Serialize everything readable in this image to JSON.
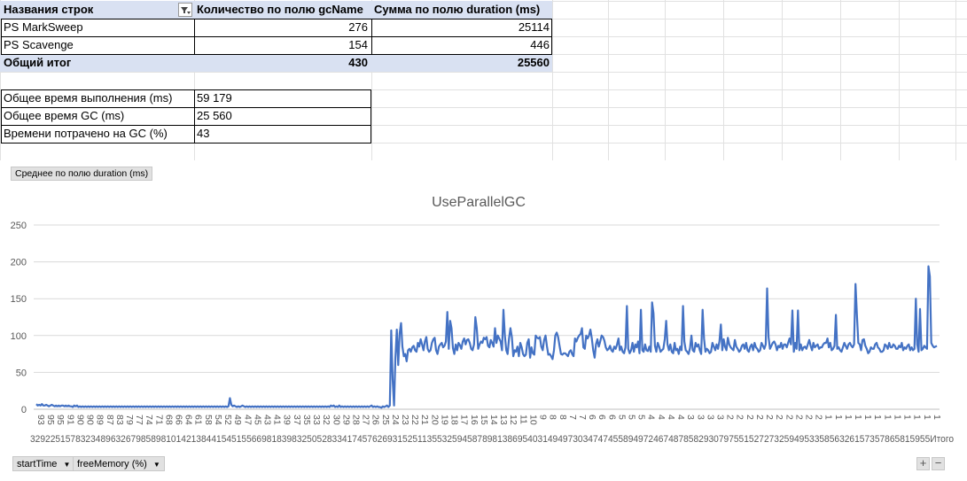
{
  "pivot": {
    "headers": {
      "rows": "Названия строк",
      "count": "Количество по полю gcName",
      "sum": "Сумма по полю duration (ms)"
    },
    "rows": [
      {
        "name": "PS MarkSweep",
        "count": "276",
        "sum": "25114"
      },
      {
        "name": "PS Scavenge",
        "count": "154",
        "sum": "446"
      }
    ],
    "total": {
      "name": "Общий итог",
      "count": "430",
      "sum": "25560"
    }
  },
  "summary": [
    {
      "label": "Общее время выполнения (ms)",
      "value": "59 179"
    },
    {
      "label": "Общее время GC (ms)",
      "value": "25 560"
    },
    {
      "label": "Времени потрачено на GC (%)",
      "value": "43"
    }
  ],
  "chart_ui": {
    "value_field_button": "Среднее по полю duration (ms)",
    "axis_field_1": "startTime",
    "axis_field_2": "freeMemory (%)",
    "zoom_in": "+",
    "zoom_out": "−"
  },
  "colors": {
    "line": "#4472c4",
    "header_fill": "#d9e1f2",
    "gridline": "#d9d9d9"
  },
  "chart_data": {
    "type": "line",
    "title": "UseParallelGC",
    "ylim": [
      0,
      250
    ],
    "yticks": [
      0,
      50,
      100,
      150,
      200,
      250
    ],
    "grid": true,
    "legend": "none",
    "x_tick_labels": [
      "93",
      "95",
      "95",
      "91",
      "90",
      "90",
      "89",
      "87",
      "83",
      "79",
      "77",
      "74",
      "71",
      "68",
      "66",
      "64",
      "61",
      "58",
      "54",
      "52",
      "49",
      "47",
      "45",
      "43",
      "41",
      "39",
      "37",
      "35",
      "33",
      "32",
      "30",
      "29",
      "28",
      "27",
      "26",
      "25",
      "24",
      "23",
      "22",
      "21",
      "20",
      "19",
      "18",
      "17",
      "16",
      "15",
      "14",
      "13",
      "12",
      "11",
      "10",
      "9",
      "8",
      "8",
      "7",
      "7",
      "6",
      "6",
      "6",
      "5",
      "5",
      "5",
      "4",
      "4",
      "4",
      "4",
      "3",
      "3",
      "3",
      "3",
      "2",
      "2",
      "2",
      "2",
      "2",
      "2",
      "2",
      "2",
      "2",
      "2",
      "1",
      "1",
      "1",
      "1",
      "1",
      "1",
      "1",
      "1",
      "1",
      "1",
      "1",
      "1"
    ],
    "x_outer_labels_visible": "32922515783234896326798589810142138441545155669818398325052833417457626931525113553259458789813869540314949730347474558949724674878582930797551527273259495335856326157357865815955Итого",
    "series": [
      {
        "values": [
          7,
          5,
          6,
          5,
          7,
          5,
          5,
          6,
          5,
          4,
          5,
          6,
          5,
          4,
          5,
          4,
          5,
          4,
          5,
          5,
          4,
          5,
          4,
          5,
          4,
          4,
          3,
          5,
          4,
          5,
          3,
          4,
          3,
          4,
          3,
          4,
          3,
          4,
          3,
          4,
          3,
          4,
          3,
          4,
          3,
          4,
          3,
          4,
          3,
          4,
          3,
          4,
          3,
          4,
          3,
          4,
          3,
          4,
          3,
          4,
          3,
          4,
          3,
          4,
          3,
          4,
          3,
          4,
          3,
          4,
          3,
          4,
          3,
          4,
          3,
          4,
          3,
          4,
          3,
          4,
          3,
          4,
          3,
          4,
          3,
          4,
          3,
          4,
          3,
          4,
          3,
          4,
          3,
          4,
          3,
          4,
          3,
          4,
          3,
          4,
          3,
          4,
          3,
          4,
          3,
          4,
          3,
          4,
          3,
          4,
          3,
          4,
          3,
          4,
          3,
          4,
          3,
          4,
          3,
          4,
          3,
          4,
          3,
          4,
          3,
          4,
          3,
          4,
          3,
          4,
          3,
          4,
          3,
          4,
          3,
          4,
          3,
          4,
          15,
          6,
          4,
          5,
          4,
          3,
          4,
          3,
          4,
          5,
          4,
          3,
          4,
          3,
          4,
          3,
          4,
          3,
          4,
          3,
          4,
          3,
          4,
          3,
          4,
          3,
          4,
          3,
          4,
          3,
          4,
          3,
          4,
          3,
          4,
          3,
          4,
          3,
          4,
          3,
          4,
          3,
          4,
          3,
          4,
          3,
          4,
          3,
          4,
          3,
          4,
          3,
          4,
          3,
          4,
          3,
          4,
          3,
          4,
          3,
          4,
          3,
          4,
          3,
          4,
          3,
          4,
          3,
          4,
          3,
          4,
          3,
          5,
          4,
          5,
          3,
          4,
          3,
          5,
          3,
          4,
          3,
          4,
          3,
          4,
          3,
          4,
          3,
          4,
          3,
          4,
          3,
          4,
          3,
          4,
          3,
          4,
          3,
          4,
          3,
          4,
          5,
          3,
          4,
          3,
          4,
          3,
          3,
          2,
          4,
          3,
          4,
          5,
          3,
          5,
          107,
          40,
          5,
          70,
          108,
          60,
          103,
          117,
          85,
          72,
          75,
          65,
          80,
          82,
          78,
          84,
          86,
          80,
          78,
          90,
          85,
          95,
          88,
          80,
          92,
          98,
          82,
          78,
          80,
          90,
          95,
          97,
          80,
          75,
          85,
          88,
          90,
          84,
          86,
          92,
          132,
          82,
          120,
          110,
          83,
          75,
          88,
          80,
          90,
          87,
          82,
          92,
          96,
          88,
          94,
          95,
          90,
          82,
          80,
          88,
          125,
          110,
          82,
          88,
          92,
          90,
          97,
          95,
          98,
          86,
          84,
          94,
          90,
          85,
          110,
          90,
          100,
          96,
          92,
          80,
          135,
          100,
          80,
          75,
          96,
          110,
          98,
          72,
          80,
          78,
          85,
          72,
          90,
          84,
          75,
          72,
          74,
          90,
          95,
          70,
          84,
          76,
          74,
          100,
          97,
          96,
          98,
          85,
          80,
          94,
          100,
          86,
          74,
          75,
          72,
          68,
          80,
          100,
          104,
          98,
          86,
          75,
          74,
          76,
          76,
          74,
          72,
          78,
          80,
          75,
          72,
          96,
          92,
          97,
          100,
          102,
          110,
          84,
          82,
          100,
          96,
          100,
          108,
          96,
          80,
          70,
          88,
          95,
          85,
          92,
          100,
          98,
          93,
          84,
          80,
          82,
          86,
          80,
          78,
          85,
          82,
          88,
          96,
          80,
          85,
          78,
          76,
          84,
          140,
          82,
          76,
          80,
          90,
          78,
          88,
          84,
          92,
          76,
          135,
          80,
          78,
          88,
          80,
          79,
          85,
          78,
          145,
          130,
          86,
          78,
          90,
          85,
          78,
          80,
          82,
          95,
          120,
          88,
          80,
          88,
          78,
          76,
          90,
          80,
          82,
          75,
          85,
          80,
          140,
          92,
          80,
          78,
          75,
          83,
          100,
          80,
          78,
          90,
          85,
          88,
          80,
          75,
          135,
          96,
          78,
          82,
          80,
          76,
          78,
          90,
          85,
          80,
          88,
          82,
          92,
          115,
          80,
          95,
          85,
          80,
          97,
          88,
          84,
          82,
          80,
          94,
          85,
          82,
          78,
          80,
          86,
          88,
          82,
          90,
          80,
          78,
          85,
          88,
          80,
          90,
          84,
          82,
          78,
          80,
          90,
          86,
          82,
          88,
          164,
          98,
          82,
          86,
          90,
          92,
          88,
          80,
          86,
          84,
          90,
          82,
          88,
          88,
          84,
          90,
          96,
          88,
          134,
          78,
          90,
          82,
          134,
          80,
          88,
          80,
          84,
          85,
          82,
          88,
          94,
          86,
          80,
          90,
          84,
          86,
          88,
          82,
          84,
          84,
          88,
          90,
          90,
          96,
          84,
          90,
          80,
          82,
          86,
          128,
          82,
          84,
          80,
          78,
          84,
          90,
          86,
          82,
          88,
          90,
          86,
          84,
          88,
          170,
          128,
          90,
          88,
          80,
          94,
          95,
          86,
          82,
          76,
          78,
          84,
          82,
          82,
          88,
          90,
          84,
          82,
          78,
          78,
          80,
          88,
          86,
          82,
          90,
          84,
          84,
          88,
          86,
          82,
          82,
          86,
          84,
          90,
          80,
          84,
          82,
          86,
          88,
          80,
          84,
          80,
          82,
          150,
          88,
          78,
          136,
          80,
          82,
          86,
          84,
          82,
          194,
          180,
          90,
          86,
          84,
          85,
          86
        ]
      }
    ]
  }
}
